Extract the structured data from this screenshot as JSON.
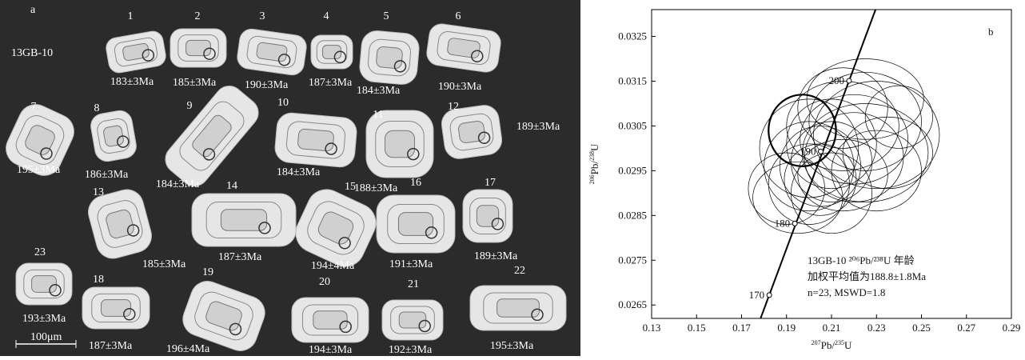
{
  "panel_a": {
    "label": "a",
    "sample": "13GB-10",
    "scale": "100μm",
    "grains": [
      {
        "id": "1",
        "age": "183±3Ma"
      },
      {
        "id": "2",
        "age": "185±3Ma"
      },
      {
        "id": "3",
        "age": "190±3Ma"
      },
      {
        "id": "4",
        "age": "187±3Ma"
      },
      {
        "id": "5",
        "age": "184±3Ma"
      },
      {
        "id": "6",
        "age": "190±3Ma"
      },
      {
        "id": "7",
        "age": "195±3Ma"
      },
      {
        "id": "8",
        "age": "186±3Ma"
      },
      {
        "id": "9",
        "age": "184±3Ma"
      },
      {
        "id": "10",
        "age": "184±3Ma"
      },
      {
        "id": "11",
        "age": "188±3Ma"
      },
      {
        "id": "12",
        "age": "189±3Ma"
      },
      {
        "id": "13",
        "age": "185±3Ma"
      },
      {
        "id": "14",
        "age": "187±3Ma"
      },
      {
        "id": "15",
        "age": "194±4Ma"
      },
      {
        "id": "16",
        "age": "191±3Ma"
      },
      {
        "id": "17",
        "age": "189±3Ma"
      },
      {
        "id": "18",
        "age": "187±3Ma"
      },
      {
        "id": "19",
        "age": "196±4Ma"
      },
      {
        "id": "20",
        "age": "194±3Ma"
      },
      {
        "id": "21",
        "age": "192±3Ma"
      },
      {
        "id": "22",
        "age": "195±3Ma"
      },
      {
        "id": "23",
        "age": "193±3Ma"
      }
    ]
  },
  "chart_data": {
    "type": "concordia",
    "panel_label": "b",
    "xlabel": [
      "207",
      "Pb/",
      "235",
      "U"
    ],
    "ylabel": [
      "206",
      "Pb/",
      "238",
      "U"
    ],
    "xlim": [
      0.13,
      0.29
    ],
    "ylim": [
      0.0262,
      0.0331
    ],
    "xticks": [
      0.13,
      0.15,
      0.17,
      0.19,
      0.21,
      0.23,
      0.25,
      0.27,
      0.29
    ],
    "yticks": [
      0.0265,
      0.0275,
      0.0285,
      0.0295,
      0.0305,
      0.0315,
      0.0325
    ],
    "concordia": {
      "ages": [
        170,
        180,
        190,
        200
      ],
      "x": [
        0.1823,
        0.1937,
        0.2052,
        0.2178
      ],
      "y": [
        0.02672,
        0.02832,
        0.02993,
        0.03151
      ]
    },
    "ellipses": {
      "x": [
        0.197,
        0.215,
        0.225,
        0.23,
        0.22,
        0.205,
        0.21,
        0.225,
        0.235,
        0.2,
        0.215,
        0.2,
        0.195,
        0.22,
        0.24,
        0.21,
        0.205,
        0.23,
        0.215,
        0.19,
        0.225,
        0.2,
        0.21
      ],
      "y": [
        0.0304,
        0.0309,
        0.0306,
        0.0303,
        0.0298,
        0.0296,
        0.0301,
        0.0311,
        0.0299,
        0.0292,
        0.0294,
        0.03,
        0.0289,
        0.0302,
        0.0307,
        0.0297,
        0.0293,
        0.0295,
        0.0305,
        0.0291,
        0.0299,
        0.0296,
        0.029
      ],
      "rx": [
        0.015,
        0.02,
        0.025,
        0.028,
        0.022,
        0.018,
        0.02,
        0.026,
        0.02,
        0.018,
        0.02,
        0.022,
        0.02,
        0.024,
        0.015,
        0.018,
        0.016,
        0.02,
        0.025,
        0.017,
        0.028,
        0.02,
        0.018
      ],
      "ry": [
        0.0008,
        0.0009,
        0.0011,
        0.0012,
        0.001,
        0.0009,
        0.001,
        0.0009,
        0.0008,
        0.0009,
        0.0008,
        0.0011,
        0.0008,
        0.001,
        0.0007,
        0.0009,
        0.0008,
        0.0009,
        0.001,
        0.0008,
        0.0011,
        0.001,
        0.0009
      ],
      "highlight": 0
    },
    "annotations": [
      "13GB-10 ²⁰⁶Pb/²³⁸U 年龄",
      "加权平均值为188.8±1.8Ma",
      "n=23, MSWD=1.8"
    ]
  }
}
